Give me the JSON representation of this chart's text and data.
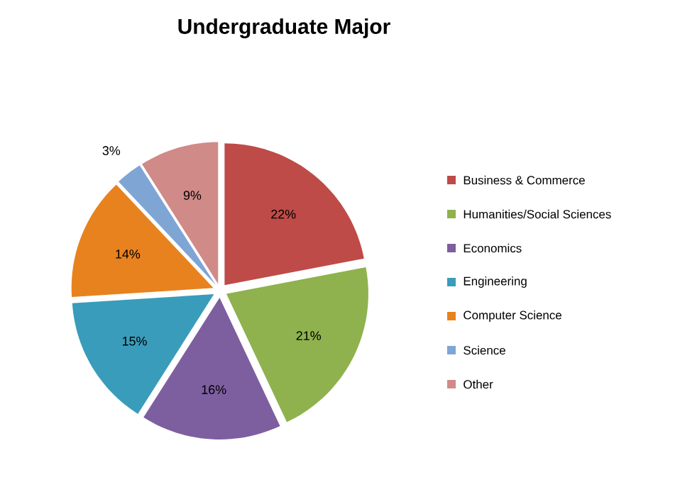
{
  "chart_data": {
    "type": "pie",
    "title": "Undergraduate Major",
    "categories": [
      "Business & Commerce",
      "Humanities/Social Sciences",
      "Economics",
      "Engineering",
      "Computer Science",
      "Science",
      "Other"
    ],
    "values": [
      22,
      21,
      16,
      15,
      14,
      3,
      9
    ],
    "value_labels": [
      "22%",
      "21%",
      "16%",
      "15%",
      "14%",
      "3%",
      "9%"
    ],
    "colors": [
      "#be4b48",
      "#8fb24e",
      "#7d5fa0",
      "#3a9cbb",
      "#e8821e",
      "#7fa5d5",
      "#d08a88"
    ],
    "legend": "right"
  }
}
